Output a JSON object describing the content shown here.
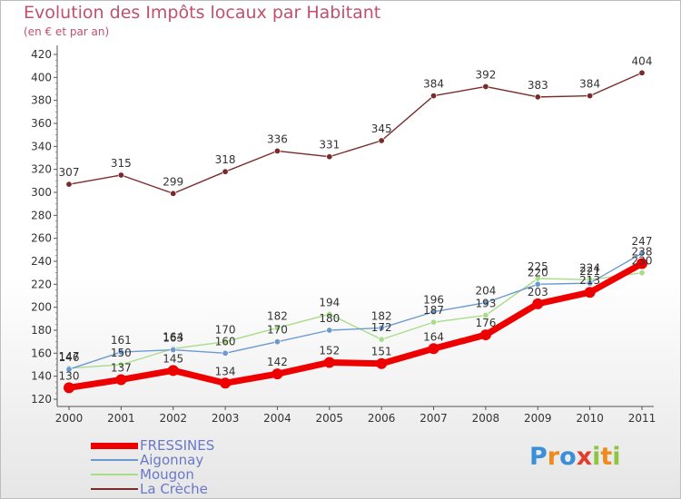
{
  "title": "Evolution des Impôts locaux par Habitant",
  "subtitle": "(en € et par an)",
  "logo_letters": [
    {
      "ch": "P",
      "color": "#3a8fd8"
    },
    {
      "ch": "r",
      "color": "#ef8a1c"
    },
    {
      "ch": "o",
      "color": "#3a8fd8"
    },
    {
      "ch": "x",
      "color": "#e23c2c"
    },
    {
      "ch": "i",
      "color": "#8cc63f"
    },
    {
      "ch": "t",
      "color": "#ef8a1c"
    },
    {
      "ch": "i",
      "color": "#8cc63f"
    }
  ],
  "chart_data": {
    "type": "line",
    "title": "Evolution des Impôts locaux par Habitant",
    "subtitle": "(en € et par an)",
    "xlabel": "",
    "ylabel": "",
    "ylim": [
      120,
      420
    ],
    "yticks": [
      120,
      140,
      160,
      180,
      200,
      220,
      240,
      260,
      280,
      300,
      320,
      340,
      360,
      380,
      400,
      420
    ],
    "grid": false,
    "legend_position": "bottom-left",
    "categories": [
      "2000",
      "2001",
      "2002",
      "2003",
      "2004",
      "2005",
      "2006",
      "2007",
      "2008",
      "2009",
      "2010",
      "2011"
    ],
    "series": [
      {
        "name": "FRESSINES",
        "color": "#ee0000",
        "width": "thick",
        "values": [
          130,
          137,
          145,
          134,
          142,
          152,
          151,
          164,
          176,
          203,
          213,
          238
        ],
        "labels": [
          "130",
          "137",
          "145",
          "134",
          "142",
          "152",
          "151",
          "164",
          "176",
          "203",
          "213",
          "238"
        ]
      },
      {
        "name": "Aigonnay",
        "color": "#6c9ad0",
        "width": "thin",
        "values": [
          146,
          161,
          163,
          160,
          170,
          180,
          182,
          196,
          204,
          220,
          221,
          247
        ],
        "labels": [
          "146",
          "161",
          "163",
          "160",
          "170",
          "180",
          "182",
          "196",
          "204",
          "220",
          "221",
          "247"
        ]
      },
      {
        "name": "Mougon",
        "color": "#a8dc88",
        "width": "thin",
        "values": [
          147,
          150,
          164,
          170,
          182,
          194,
          172,
          187,
          193,
          225,
          224,
          230
        ],
        "labels": [
          "147",
          "150",
          "164",
          "170",
          "182",
          "194",
          "172",
          "187",
          "193",
          "225",
          "224",
          "230"
        ]
      },
      {
        "name": "La Crèche",
        "color": "#7a2a2a",
        "width": "thin",
        "values": [
          307,
          315,
          299,
          318,
          336,
          331,
          345,
          384,
          392,
          383,
          384,
          404
        ],
        "labels": [
          "307",
          "315",
          "299",
          "318",
          "336",
          "331",
          "345",
          "384",
          "392",
          "383",
          "384",
          "404"
        ]
      }
    ]
  }
}
